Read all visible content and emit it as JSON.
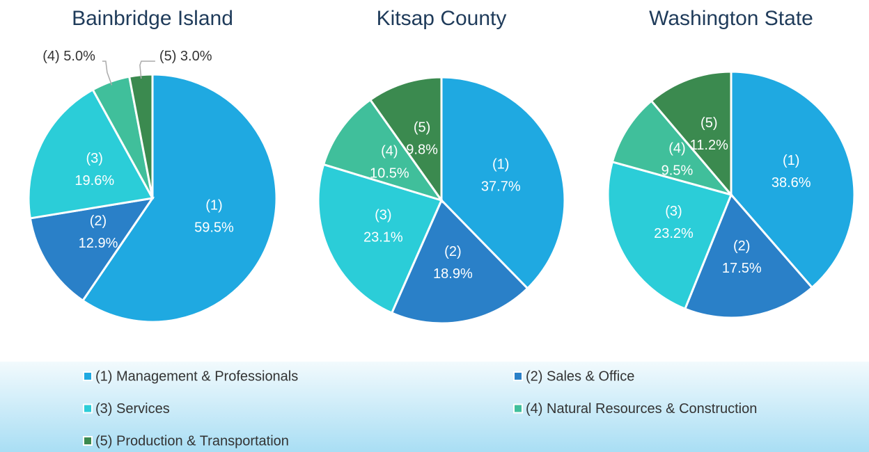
{
  "chart_data": [
    {
      "type": "pie",
      "title": "Bainbridge Island",
      "labels": [
        "(1)",
        "(2)",
        "(3)",
        "(4)",
        "(5)"
      ],
      "values": [
        59.5,
        12.9,
        19.6,
        5.0,
        3.0
      ],
      "value_labels": [
        "59.5%",
        "12.9%",
        "19.6%",
        "5.0%",
        "3.0%"
      ]
    },
    {
      "type": "pie",
      "title": "Kitsap County",
      "labels": [
        "(1)",
        "(2)",
        "(3)",
        "(4)",
        "(5)"
      ],
      "values": [
        37.7,
        18.9,
        23.1,
        10.5,
        9.8
      ],
      "value_labels": [
        "37.7%",
        "18.9%",
        "23.1%",
        "10.5%",
        "9.8%"
      ]
    },
    {
      "type": "pie",
      "title": "Washington State",
      "labels": [
        "(1)",
        "(2)",
        "(3)",
        "(4)",
        "(5)"
      ],
      "values": [
        38.6,
        17.5,
        23.2,
        9.5,
        11.2
      ],
      "value_labels": [
        "38.6%",
        "17.5%",
        "23.2%",
        "9.5%",
        "11.2%"
      ]
    }
  ],
  "legend": {
    "categories": [
      "(1) Management & Professionals",
      "(2) Sales & Office",
      "(3) Services",
      "(4) Natural Resources & Construction",
      "(5) Production & Transportation"
    ],
    "colors": [
      "#1fa9e1",
      "#2a80c8",
      "#2bcdd8",
      "#40bf9b",
      "#3b8a4f"
    ]
  }
}
